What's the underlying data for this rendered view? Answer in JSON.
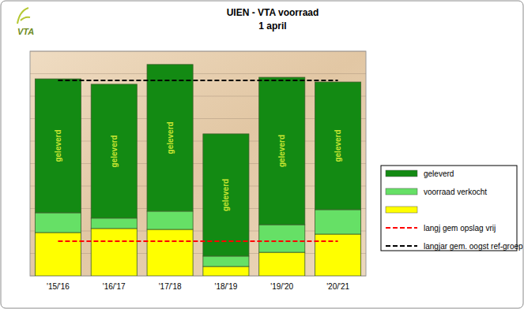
{
  "logo": "VTA",
  "chart_data": {
    "type": "bar",
    "title": "UIEN - VTA voorraad",
    "subtitle": "1 april",
    "categories": [
      "'15/'16",
      "'16/'17",
      "'17/'18",
      "'18/'19",
      "'19/'20",
      "'20/'21"
    ],
    "stacked": true,
    "ylim": [
      0,
      100
    ],
    "yticks": [
      0,
      10,
      20,
      30,
      40,
      50,
      60,
      70,
      80,
      90,
      100
    ],
    "grid": true,
    "tick_labels": "x",
    "legend": "right",
    "series": [
      {
        "name": "geleverd",
        "color": "#138a13",
        "values": [
          59.6,
          59.6,
          65.3,
          54.4,
          65.6,
          56.8
        ]
      },
      {
        "name": "voorraad verkocht",
        "color": "#66e066",
        "values": [
          8.8,
          4.6,
          8.1,
          4.6,
          12.3,
          10.9
        ]
      },
      {
        "color": "#ffff00",
        "values": [
          19.3,
          21.1,
          20.7,
          4.2,
          10.5,
          18.6
        ]
      },
      {
        "name": "langj gem opslag vrij",
        "type": "line",
        "color": "#ff0000",
        "line_style": "dashed",
        "values": [
          15.4,
          15.4,
          15.4,
          15.4,
          15.4,
          15.4
        ]
      },
      {
        "name": "langjar gem. oogst ref-groep",
        "type": "line",
        "color": "#000000",
        "line_style": "dashed",
        "values": [
          87,
          87,
          87,
          87,
          87,
          87
        ]
      }
    ]
  }
}
